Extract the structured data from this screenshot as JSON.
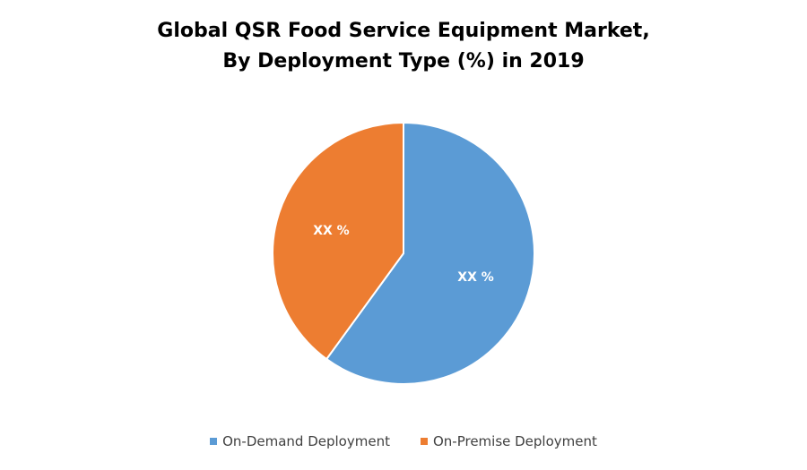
{
  "chart_data": {
    "type": "pie",
    "title_lines": [
      "Global QSR Food Service Equipment Market,",
      "By Deployment Type (%) in 2019"
    ],
    "series": [
      {
        "name": "On-Demand Deployment",
        "value": 60,
        "label": "XX %",
        "color": "#5B9BD5"
      },
      {
        "name": "On-Premise Deployment",
        "value": 40,
        "label": "XX %",
        "color": "#ED7D31"
      }
    ],
    "start_angle_deg": 0,
    "direction": "clockwise",
    "legend_position": "bottom"
  }
}
